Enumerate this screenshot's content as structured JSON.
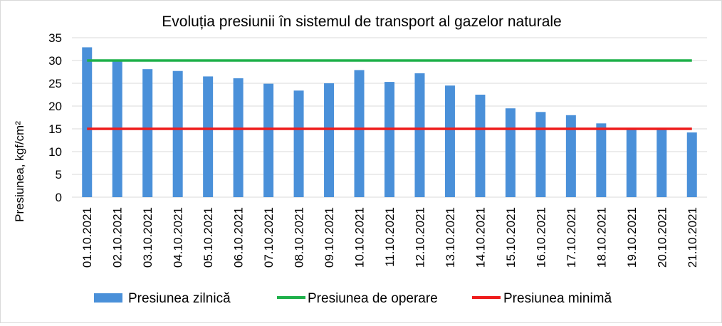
{
  "chart_data": {
    "type": "bar",
    "title": "Evoluția presiunii în sistemul de transport al gazelor naturale",
    "ylabel": "Presiunea, kgf/cm²",
    "xlabel": "",
    "ylim": [
      0,
      35
    ],
    "yticks": [
      0,
      5,
      10,
      15,
      20,
      25,
      30,
      35
    ],
    "grid": true,
    "legend_position": "bottom",
    "categories": [
      "01.10.2021",
      "02.10.2021",
      "03.10.2021",
      "04.10.2021",
      "05.10.2021",
      "06.10.2021",
      "07.10.2021",
      "08.10.2021",
      "09.10.2021",
      "10.10.2021",
      "11.10.2021",
      "12.10.2021",
      "13.10.2021",
      "14.10.2021",
      "15.10.2021",
      "16.10.2021",
      "17.10.2021",
      "18.10.2021",
      "19.10.2021",
      "20.10.2021",
      "21.10.2021"
    ],
    "series": [
      {
        "name": "Presiunea zilnică",
        "kind": "bar",
        "color": "#4a90d9",
        "values": [
          32.9,
          30.0,
          28.1,
          27.7,
          26.5,
          26.1,
          24.9,
          23.4,
          25.0,
          27.9,
          25.3,
          27.2,
          24.5,
          22.5,
          19.5,
          18.7,
          18.0,
          16.2,
          15.2,
          14.9,
          14.2
        ]
      },
      {
        "name": "Presiunea de operare",
        "kind": "line",
        "color": "#1fb04a",
        "values": [
          30,
          30,
          30,
          30,
          30,
          30,
          30,
          30,
          30,
          30,
          30,
          30,
          30,
          30,
          30,
          30,
          30,
          30,
          30,
          30,
          30
        ]
      },
      {
        "name": "Presiunea minimă",
        "kind": "line",
        "color": "#ee1c1c",
        "values": [
          15,
          15,
          15,
          15,
          15,
          15,
          15,
          15,
          15,
          15,
          15,
          15,
          15,
          15,
          15,
          15,
          15,
          15,
          15,
          15,
          15
        ]
      }
    ]
  }
}
